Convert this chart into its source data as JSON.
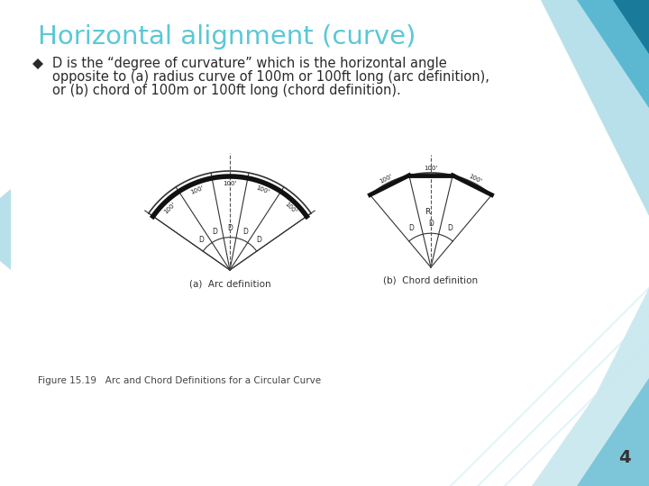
{
  "title": "Horizontal alignment (curve)",
  "title_color": "#5BC8D5",
  "bullet_text_line1": "D is the “degree of curvature” which is the horizontal angle",
  "bullet_text_line2": "opposite to (a) radius curve of 100m or 100ft long (arc definition),",
  "bullet_text_line3": "or (b) chord of 100m or 100ft long (chord definition).",
  "fig_caption": "Figure 15.19   Arc and Chord Definitions for a Circular Curve",
  "sub_caption_a": "(a)  Arc definition",
  "sub_caption_b": "(b)  Chord definition",
  "page_number": "4",
  "bg_color": "#FFFFFF",
  "text_color": "#2A2A2A",
  "diagram_color": "#222222"
}
